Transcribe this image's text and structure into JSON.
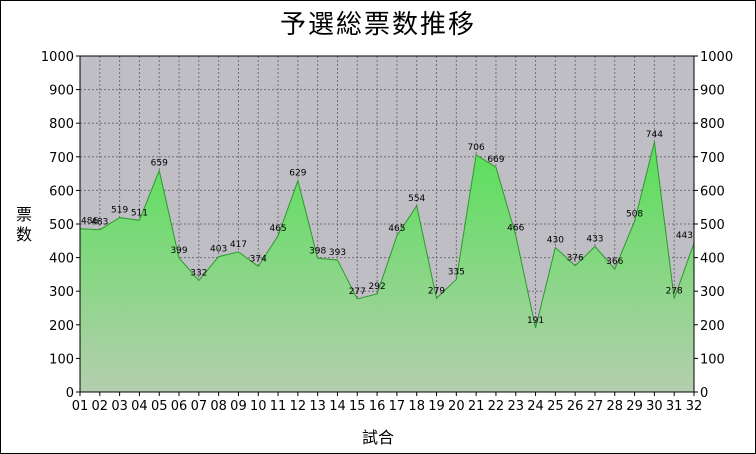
{
  "chart_data": {
    "type": "area",
    "title": "予選総票数推移",
    "xlabel": "試合",
    "ylabel": "票数",
    "categories": [
      "01",
      "02",
      "03",
      "04",
      "05",
      "06",
      "07",
      "08",
      "09",
      "10",
      "11",
      "12",
      "13",
      "14",
      "15",
      "16",
      "17",
      "18",
      "19",
      "20",
      "21",
      "22",
      "23",
      "24",
      "25",
      "26",
      "27",
      "28",
      "29",
      "30",
      "31",
      "32"
    ],
    "values": [
      486,
      483,
      519,
      511,
      659,
      399,
      332,
      403,
      417,
      374,
      465,
      629,
      398,
      393,
      277,
      292,
      465,
      554,
      279,
      335,
      706,
      669,
      466,
      191,
      430,
      376,
      433,
      366,
      508,
      744,
      278,
      443
    ],
    "ylim": [
      0,
      1000
    ],
    "yticks": [
      0,
      100,
      200,
      300,
      400,
      500,
      600,
      700,
      800,
      900,
      1000
    ],
    "grid": true,
    "legend": "none",
    "colors": {
      "plot_bg": "#c0bec5",
      "fill_top": "#58e058",
      "fill_bottom": "#b4ceae",
      "line": "#2a9a2a",
      "grid": "#707070"
    }
  }
}
